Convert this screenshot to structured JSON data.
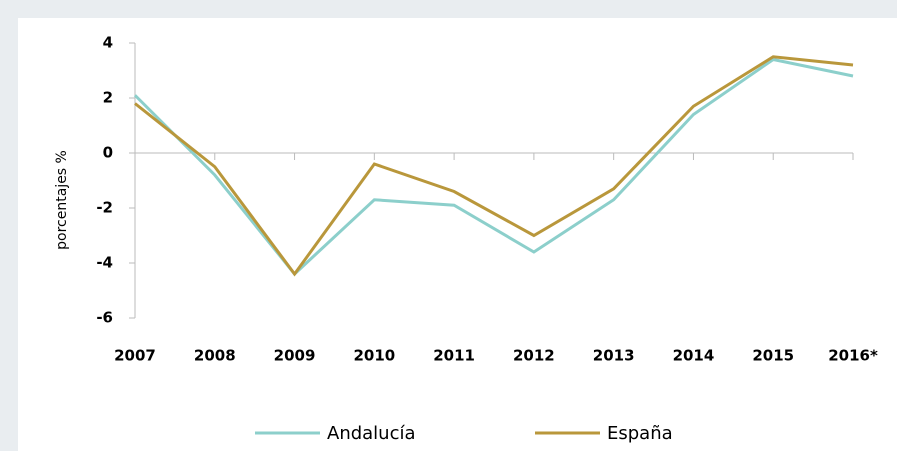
{
  "chart_data": {
    "type": "line",
    "ylabel": "porcentajes %",
    "categories": [
      "2007",
      "2008",
      "2009",
      "2010",
      "2011",
      "2012",
      "2013",
      "2014",
      "2015",
      "2016*"
    ],
    "series": [
      {
        "name": "Andalucía",
        "color": "#8ccfcb",
        "values": [
          2.1,
          -0.8,
          -4.4,
          -1.7,
          -1.9,
          -3.6,
          -1.7,
          1.4,
          3.4,
          2.8
        ]
      },
      {
        "name": "España",
        "color": "#b9973b",
        "values": [
          1.8,
          -0.5,
          -4.4,
          -0.4,
          -1.4,
          -3.0,
          -1.3,
          1.7,
          3.5,
          3.2
        ]
      }
    ],
    "ylim": [
      -6,
      4
    ],
    "yticks": [
      -6,
      -4,
      -2,
      0,
      2,
      4
    ],
    "legend": "bottom"
  }
}
